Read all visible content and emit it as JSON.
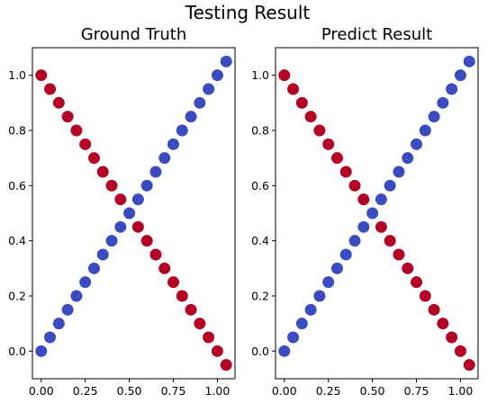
{
  "suptitle": "Testing Result",
  "chart_data": [
    {
      "type": "scatter",
      "title": "Ground Truth",
      "xlabel": "",
      "ylabel": "",
      "xlim": [
        -0.05,
        1.1
      ],
      "ylim": [
        -0.1,
        1.1
      ],
      "xticks": [
        0.0,
        0.25,
        0.5,
        0.75,
        1.0
      ],
      "xtick_labels": [
        "0.00",
        "0.25",
        "0.50",
        "0.75",
        "1.00"
      ],
      "yticks": [
        0.0,
        0.2,
        0.4,
        0.6,
        0.8,
        1.0
      ],
      "ytick_labels": [
        "0.0",
        "0.2",
        "0.4",
        "0.6",
        "0.8",
        "1.0"
      ],
      "grid": false,
      "series": [
        {
          "color": "#3b4cc0",
          "x": [
            0.0,
            0.05,
            0.1,
            0.15,
            0.2,
            0.25,
            0.3,
            0.35,
            0.4,
            0.45,
            0.5,
            0.55,
            0.6,
            0.65,
            0.7,
            0.75,
            0.8,
            0.85,
            0.9,
            0.95,
            1.0,
            1.05
          ],
          "y": [
            0.0,
            0.05,
            0.1,
            0.15,
            0.2,
            0.25,
            0.3,
            0.35,
            0.4,
            0.45,
            0.5,
            0.55,
            0.6,
            0.65,
            0.7,
            0.75,
            0.8,
            0.85,
            0.9,
            0.95,
            1.0,
            1.05
          ]
        },
        {
          "color": "#b40426",
          "x": [
            0.0,
            0.05,
            0.1,
            0.15,
            0.2,
            0.25,
            0.3,
            0.35,
            0.4,
            0.45,
            0.55,
            0.6,
            0.65,
            0.7,
            0.75,
            0.8,
            0.85,
            0.9,
            0.95,
            1.0,
            1.05
          ],
          "y": [
            1.0,
            0.95,
            0.9,
            0.85,
            0.8,
            0.75,
            0.7,
            0.65,
            0.6,
            0.55,
            0.45,
            0.4,
            0.35,
            0.3,
            0.25,
            0.2,
            0.15,
            0.1,
            0.05,
            0.0,
            -0.05
          ]
        }
      ]
    },
    {
      "type": "scatter",
      "title": "Predict Result",
      "xlabel": "",
      "ylabel": "",
      "xlim": [
        -0.05,
        1.1
      ],
      "ylim": [
        -0.1,
        1.1
      ],
      "xticks": [
        0.0,
        0.25,
        0.5,
        0.75,
        1.0
      ],
      "xtick_labels": [
        "0.00",
        "0.25",
        "0.50",
        "0.75",
        "1.00"
      ],
      "yticks": [
        0.0,
        0.2,
        0.4,
        0.6,
        0.8,
        1.0
      ],
      "ytick_labels": [
        "0.0",
        "0.2",
        "0.4",
        "0.6",
        "0.8",
        "1.0"
      ],
      "grid": false,
      "series": [
        {
          "color": "#3b4cc0",
          "x": [
            0.0,
            0.05,
            0.1,
            0.15,
            0.2,
            0.25,
            0.3,
            0.35,
            0.4,
            0.45,
            0.5,
            0.55,
            0.6,
            0.65,
            0.7,
            0.75,
            0.8,
            0.85,
            0.9,
            0.95,
            1.0,
            1.05
          ],
          "y": [
            0.0,
            0.05,
            0.1,
            0.15,
            0.2,
            0.25,
            0.3,
            0.35,
            0.4,
            0.45,
            0.5,
            0.55,
            0.6,
            0.65,
            0.7,
            0.75,
            0.8,
            0.85,
            0.9,
            0.95,
            1.0,
            1.05
          ]
        },
        {
          "color": "#b40426",
          "x": [
            0.0,
            0.05,
            0.1,
            0.15,
            0.2,
            0.25,
            0.3,
            0.35,
            0.4,
            0.45,
            0.55,
            0.6,
            0.65,
            0.7,
            0.75,
            0.8,
            0.85,
            0.9,
            0.95,
            1.0,
            1.05
          ],
          "y": [
            1.0,
            0.95,
            0.9,
            0.85,
            0.8,
            0.75,
            0.7,
            0.65,
            0.6,
            0.55,
            0.45,
            0.4,
            0.35,
            0.3,
            0.25,
            0.2,
            0.15,
            0.1,
            0.05,
            0.0,
            -0.05
          ]
        }
      ]
    }
  ]
}
